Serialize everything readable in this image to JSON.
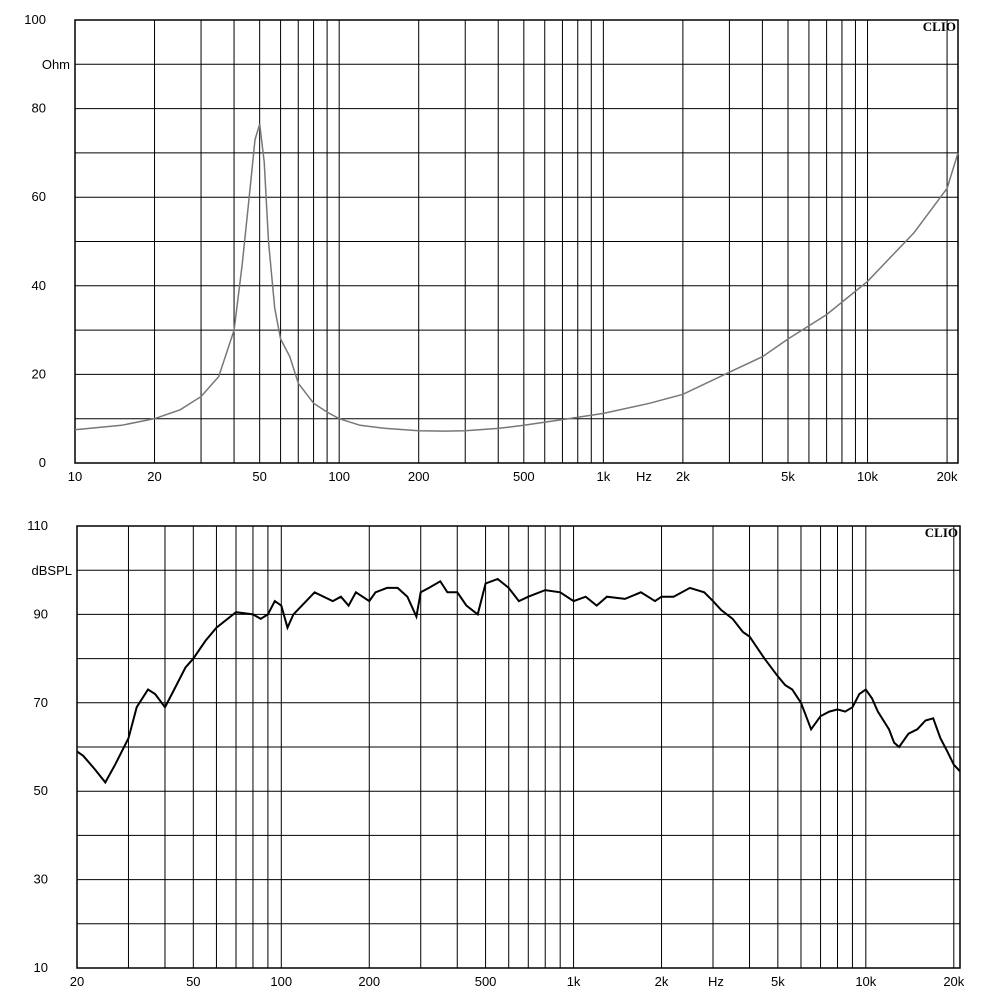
{
  "charts": [
    {
      "brand": "CLIO",
      "unit_label": "Ohm",
      "x_unit_label": "Hz",
      "y_tick_labels": [
        "100",
        "80",
        "60",
        "40",
        "20",
        "0"
      ],
      "x_tick_labels": [
        "10",
        "20",
        "50",
        "100",
        "200",
        "500",
        "1k",
        "2k",
        "5k",
        "10k",
        "20k"
      ]
    },
    {
      "brand": "CLIO",
      "unit_label": "dBSPL",
      "x_unit_label": "Hz",
      "y_tick_labels": [
        "110",
        "90",
        "70",
        "50",
        "30",
        "10"
      ],
      "x_tick_labels": [
        "20",
        "50",
        "100",
        "200",
        "500",
        "1k",
        "2k",
        "5k",
        "10k",
        "20k"
      ]
    }
  ],
  "chart_data": [
    {
      "type": "line",
      "xlabel": "Hz",
      "ylabel": "Ohm",
      "xscale": "log",
      "xlim": [
        10,
        22000
      ],
      "ylim": [
        0,
        100
      ],
      "grid": true,
      "line_color": "#777777",
      "x_ticks": [
        10,
        20,
        50,
        100,
        200,
        500,
        1000,
        2000,
        5000,
        10000,
        20000
      ],
      "y_ticks": [
        100,
        80,
        60,
        40,
        20,
        0
      ],
      "series": [
        {
          "x": [
            10,
            15,
            20,
            25,
            30,
            35,
            40,
            43,
            46,
            48,
            50,
            52,
            54,
            57,
            60,
            65,
            70,
            80,
            90,
            100,
            120,
            150,
            200,
            250,
            300,
            400,
            500,
            700,
            1000,
            1500,
            2000,
            3000,
            4000,
            5000,
            7000,
            10000,
            15000,
            20000,
            22000
          ],
          "y": [
            7.5,
            8.5,
            10,
            12,
            15,
            19.5,
            30,
            45,
            62,
            73,
            76.5,
            68,
            50,
            35,
            28,
            24,
            18,
            13.5,
            11.5,
            10,
            8.5,
            7.8,
            7.3,
            7.2,
            7.3,
            7.8,
            8.5,
            9.8,
            11.2,
            13.5,
            15.5,
            20.5,
            24,
            28,
            33.5,
            41,
            52,
            62,
            70
          ]
        }
      ]
    },
    {
      "type": "line",
      "xlabel": "Hz",
      "ylabel": "dBSPL",
      "xscale": "log",
      "xlim": [
        20,
        21000
      ],
      "ylim": [
        10,
        110
      ],
      "grid": true,
      "line_color": "#000000",
      "x_ticks": [
        20,
        50,
        100,
        200,
        500,
        1000,
        2000,
        5000,
        10000,
        20000
      ],
      "y_ticks": [
        110,
        90,
        70,
        50,
        30,
        10
      ],
      "series": [
        {
          "x": [
            20,
            21,
            23,
            25,
            27,
            30,
            32,
            35,
            37,
            40,
            43,
            47,
            50,
            55,
            60,
            70,
            80,
            85,
            90,
            95,
            100,
            105,
            110,
            130,
            150,
            160,
            170,
            180,
            200,
            210,
            230,
            250,
            270,
            290,
            300,
            320,
            350,
            370,
            400,
            430,
            470,
            500,
            550,
            600,
            650,
            700,
            800,
            900,
            1000,
            1100,
            1200,
            1300,
            1500,
            1700,
            1900,
            2000,
            2200,
            2500,
            2800,
            3000,
            3200,
            3500,
            3800,
            4000,
            4500,
            5000,
            5300,
            5600,
            6000,
            6500,
            7000,
            7500,
            8000,
            8500,
            9000,
            9500,
            10000,
            10500,
            11000,
            12000,
            12500,
            13000,
            14000,
            15000,
            16000,
            17000,
            18000,
            19000,
            20000,
            21000
          ],
          "y": [
            59,
            58,
            55,
            52,
            56,
            62,
            69,
            73,
            72,
            69,
            73,
            78,
            80,
            84,
            87,
            90.5,
            90,
            89,
            90,
            93,
            92,
            87,
            90,
            95,
            93,
            94,
            92,
            95,
            93,
            95,
            96,
            96,
            94,
            89.5,
            95,
            96,
            97.5,
            95,
            95,
            92,
            90,
            97,
            98,
            96,
            93,
            94,
            95.5,
            95,
            93,
            94,
            92,
            94,
            93.5,
            95,
            93,
            94,
            94,
            96,
            95,
            93,
            91,
            89,
            86,
            85,
            80,
            76,
            74,
            73,
            70,
            64,
            67,
            68,
            68.5,
            68,
            69,
            72,
            73,
            71,
            68,
            64,
            61,
            60,
            63,
            64,
            66,
            66.5,
            62,
            59,
            56,
            54.5
          ]
        }
      ]
    }
  ]
}
